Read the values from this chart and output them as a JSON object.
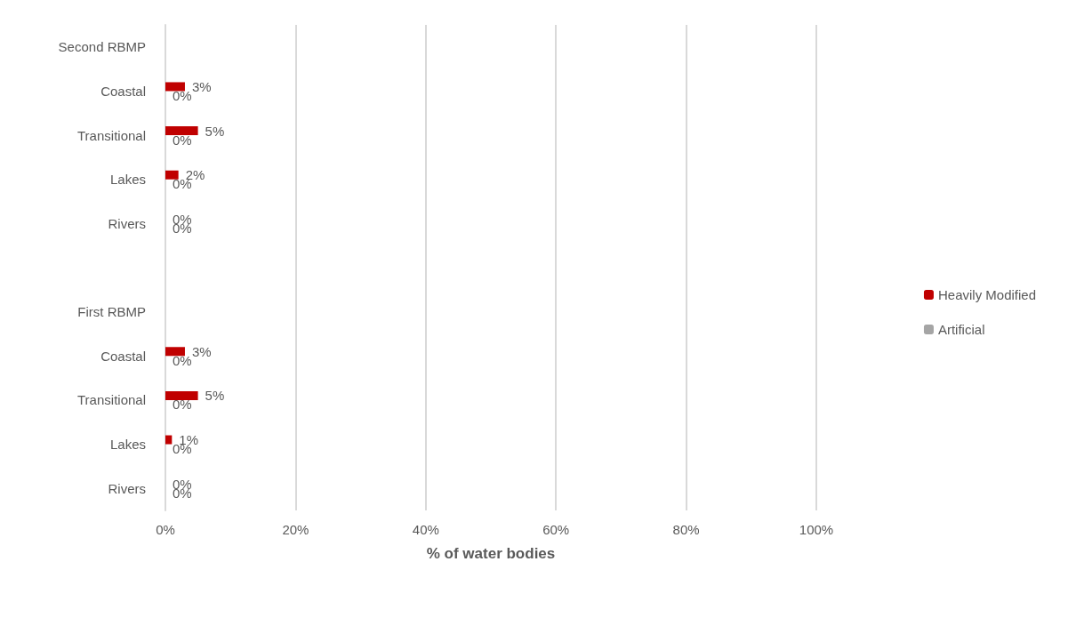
{
  "chart_data": {
    "type": "bar",
    "orientation": "horizontal",
    "xlabel": "% of water bodies",
    "categories": [
      "Second RBMP",
      "Coastal",
      "Transitional",
      "Lakes",
      "Rivers",
      null,
      "First RBMP",
      "Coastal",
      "Transitional",
      "Lakes",
      "Rivers"
    ],
    "series": [
      {
        "name": "Heavily Modified",
        "color": "#c00000",
        "values": [
          null,
          3,
          5,
          2,
          0,
          null,
          null,
          3,
          5,
          1,
          0
        ],
        "value_labels": [
          null,
          "3%",
          "5%",
          "2%",
          "0%",
          null,
          null,
          "3%",
          "5%",
          "1%",
          "0%"
        ]
      },
      {
        "name": "Artificial",
        "color": "#a5a5a5",
        "values": [
          null,
          0,
          0,
          0,
          0,
          null,
          null,
          0,
          0,
          0,
          0
        ],
        "value_labels": [
          null,
          "0%",
          "0%",
          "0%",
          "0%",
          null,
          null,
          "0%",
          "0%",
          "0%",
          "0%"
        ]
      }
    ],
    "xlim": [
      0,
      100
    ],
    "xticks": [
      {
        "value": 0,
        "label": "0%"
      },
      {
        "value": 20,
        "label": "20%"
      },
      {
        "value": 40,
        "label": "40%"
      },
      {
        "value": 60,
        "label": "60%"
      },
      {
        "value": 80,
        "label": "80%"
      },
      {
        "value": 100,
        "label": "100%"
      }
    ],
    "grid": "x",
    "legend": "right"
  }
}
